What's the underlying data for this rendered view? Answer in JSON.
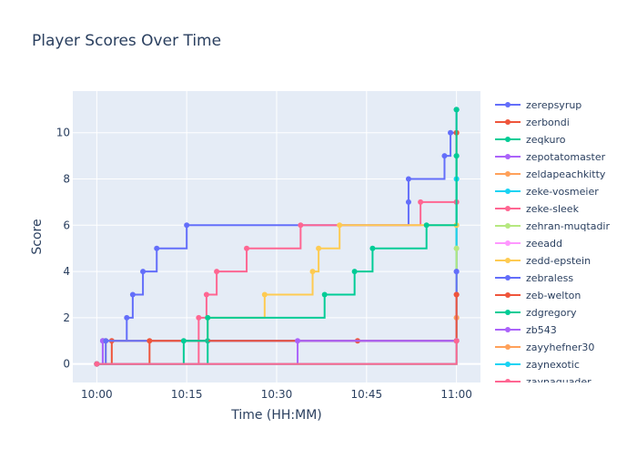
{
  "chart_data": {
    "type": "line",
    "line_shape": "step-after",
    "title": "Player Scores Over Time",
    "xlabel": "Time (HH:MM)",
    "ylabel": "Score",
    "x_range_minutes": [
      -4,
      64
    ],
    "ylim": [
      -0.8,
      11.8
    ],
    "x_tick_minutes": [
      0,
      15,
      30,
      45,
      60
    ],
    "x_tick_labels": [
      "10:00",
      "10:15",
      "10:30",
      "10:45",
      "11:00"
    ],
    "y_ticks": [
      0,
      2,
      4,
      6,
      8,
      10
    ],
    "grid": true,
    "legend_position": "right",
    "series": [
      {
        "name": "zerepsyrup",
        "color": "#636efa",
        "x": [
          0,
          1,
          5,
          6,
          7.7,
          10,
          15,
          52,
          52,
          58,
          59,
          60,
          60
        ],
        "y": [
          0,
          1,
          2,
          3,
          4,
          5,
          6,
          7,
          8,
          9,
          10,
          11,
          11
        ]
      },
      {
        "name": "zerbondi",
        "color": "#EF553B",
        "x": [
          0,
          2.5,
          43.5,
          60,
          60
        ],
        "y": [
          0,
          1,
          1,
          10,
          10
        ]
      },
      {
        "name": "zeqkuro",
        "color": "#00cc96",
        "x": [
          0,
          18.5,
          60,
          60
        ],
        "y": [
          0,
          1,
          9,
          9
        ]
      },
      {
        "name": "zepotatomaster",
        "color": "#ab63fa",
        "x": [
          0,
          1,
          60,
          60
        ],
        "y": [
          0,
          1,
          1,
          1
        ]
      },
      {
        "name": "zeldapeachkitty",
        "color": "#FFA15A",
        "x": [
          0,
          60,
          60
        ],
        "y": [
          0,
          2,
          2
        ]
      },
      {
        "name": "zeke-vosmeier",
        "color": "#19d3f3",
        "x": [
          0,
          60,
          60
        ],
        "y": [
          0,
          8,
          8
        ]
      },
      {
        "name": "zeke-sleek",
        "color": "#FF6692",
        "x": [
          0,
          17,
          18.3,
          20,
          25,
          34,
          54,
          60,
          60
        ],
        "y": [
          0,
          2,
          3,
          4,
          5,
          6,
          7,
          7,
          7
        ]
      },
      {
        "name": "zehran-muqtadir",
        "color": "#B6E880",
        "x": [
          0,
          60,
          60
        ],
        "y": [
          0,
          5,
          5
        ]
      },
      {
        "name": "zeeadd",
        "color": "#FF97FF",
        "x": [
          0,
          60,
          60
        ],
        "y": [
          0,
          3,
          3
        ]
      },
      {
        "name": "zedd-epstein",
        "color": "#FECB52",
        "x": [
          0,
          1.5,
          18.5,
          28,
          36,
          37,
          40.5,
          60,
          60
        ],
        "y": [
          0,
          1,
          2,
          3,
          4,
          5,
          6,
          6,
          6
        ]
      },
      {
        "name": "zebraless",
        "color": "#636efa",
        "x": [
          0,
          1.5,
          60,
          60
        ],
        "y": [
          0,
          1,
          4,
          4
        ]
      },
      {
        "name": "zeb-welton",
        "color": "#EF553B",
        "x": [
          0,
          8.8,
          60,
          60
        ],
        "y": [
          0,
          1,
          3,
          3
        ]
      },
      {
        "name": "zdgregory",
        "color": "#00cc96",
        "x": [
          0,
          14.5,
          18.5,
          38,
          43,
          46,
          55,
          60,
          60
        ],
        "y": [
          0,
          1,
          2,
          3,
          4,
          5,
          6,
          11,
          11
        ]
      },
      {
        "name": "zb543",
        "color": "#ab63fa",
        "x": [
          0,
          33.5,
          60,
          60
        ],
        "y": [
          0,
          1,
          1,
          1
        ]
      },
      {
        "name": "zayyhefner30",
        "color": "#FFA15A",
        "x": [
          0,
          60,
          60
        ],
        "y": [
          0,
          1,
          1
        ]
      },
      {
        "name": "zaynexotic",
        "color": "#19d3f3",
        "x": [
          0,
          60,
          60
        ],
        "y": [
          0,
          1,
          1
        ]
      },
      {
        "name": "zaynaguader",
        "color": "#FF6692",
        "x": [
          0,
          60,
          60
        ],
        "y": [
          0,
          1,
          1
        ]
      }
    ]
  }
}
